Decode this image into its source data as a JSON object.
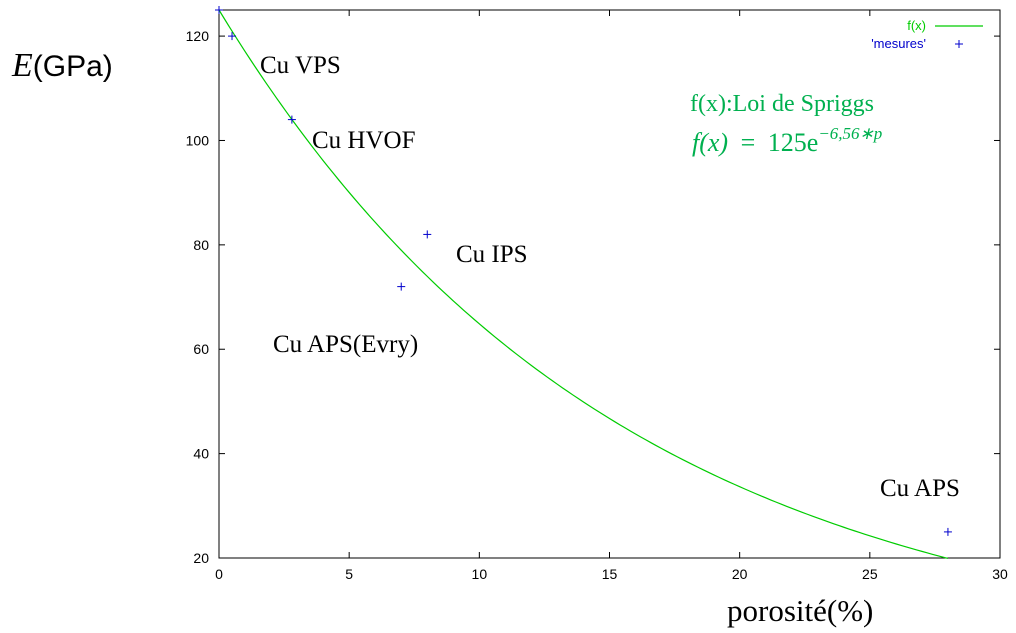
{
  "chart_data": {
    "type": "scatter",
    "xlabel": "porosité(%)",
    "ylabel_italic": "E",
    "ylabel_unit": "(GPa)",
    "xlim": [
      0,
      30
    ],
    "ylim": [
      20,
      125
    ],
    "x_ticks": [
      0,
      5,
      10,
      15,
      20,
      25,
      30
    ],
    "y_ticks": [
      20,
      40,
      60,
      80,
      100,
      120
    ],
    "grid": false,
    "legend_position": "top-right",
    "series": [
      {
        "name": "f(x)",
        "kind": "line",
        "color": "#00cc00",
        "model": {
          "a": 125,
          "b": -6.56,
          "x_unit_divisor": 100
        },
        "x_range": [
          0,
          28
        ]
      },
      {
        "name": "'mesures'",
        "kind": "points",
        "color": "#0000cc",
        "marker": "+",
        "points": [
          {
            "x": 0.0,
            "y": 125
          },
          {
            "x": 0.5,
            "y": 120
          },
          {
            "x": 2.8,
            "y": 104
          },
          {
            "x": 8.0,
            "y": 82
          },
          {
            "x": 7.0,
            "y": 72
          },
          {
            "x": 28.0,
            "y": 25
          }
        ]
      }
    ],
    "annotations": [
      {
        "text": "Cu VPS"
      },
      {
        "text": "Cu HVOF"
      },
      {
        "text": "Cu IPS"
      },
      {
        "text": "Cu APS(Evry)"
      },
      {
        "text": "Cu APS"
      }
    ],
    "model_label": {
      "line1": "f(x):Loi de Spriggs",
      "lhs": "f(x)",
      "equals": "=",
      "base": "125e",
      "exponent": "−6,56∗p",
      "color": "#00b04f"
    }
  }
}
